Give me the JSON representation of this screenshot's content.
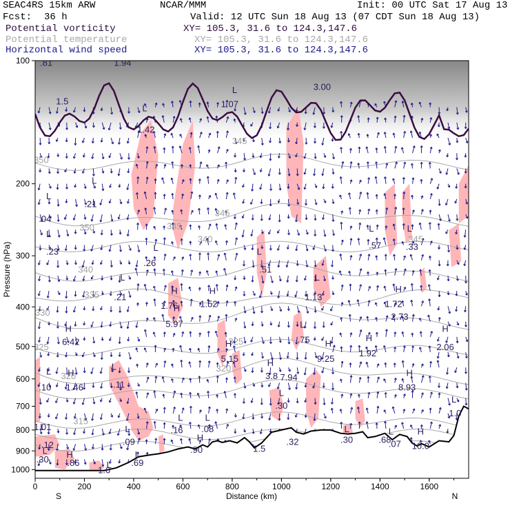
{
  "header": {
    "model": "SEAC4RS 15km ARW",
    "center": "NCAR/MMM",
    "init": "Init: 00 UTC Sat 17 Aug 13",
    "fcst_label": "Fcst:",
    "fcst_value": "36 h",
    "valid": "Valid: 12 UTC Sun 18 Aug 13 (07 CDT Sun 18 Aug 13)",
    "fields": [
      {
        "name": "Potential vorticity",
        "xy": "XY= 105.3, 31.6 to 124.3,147.6",
        "color": "#2a0c3a"
      },
      {
        "name": "Potential temperature",
        "xy": "XY= 105.3, 31.6 to 124.3,147.6",
        "color": "#a8a8a8"
      },
      {
        "name": "Horizontal wind speed",
        "xy": "XY= 105.3, 31.6 to 124.3,147.6",
        "color": "#1a1a8c"
      }
    ]
  },
  "colors": {
    "pv_shade": "#ffb6b9",
    "wind": "#1a1a8c",
    "theta": "#a8a8a8",
    "pv_contour": "#3a0c40",
    "terrain": "#000000"
  },
  "chart_data": {
    "type": "cross-section",
    "xlabel": "Distance (km)",
    "ylabel": "Pressure (hPa)",
    "x_ticks": [
      0,
      200,
      400,
      600,
      800,
      1000,
      1200,
      1400,
      1600
    ],
    "x_tick_labels": [
      "0",
      "200",
      "400",
      "600",
      "800",
      "1000",
      "1200",
      "1400",
      "1600"
    ],
    "y_ticks": [
      100,
      200,
      300,
      400,
      500,
      600,
      700,
      800,
      900,
      1000
    ],
    "y_tick_labels": [
      "100",
      "200",
      "300",
      "400",
      "500",
      "600",
      "700",
      "800",
      "900",
      "1000"
    ],
    "xlim": [
      0,
      1760
    ],
    "ylim": [
      1050,
      100
    ],
    "y_scale": "log",
    "x_end_labels": {
      "left": "S",
      "right": "N"
    },
    "terrain": {
      "x": [
        0,
        280,
        330,
        380,
        420,
        470,
        500,
        540,
        580,
        620,
        650,
        680,
        700,
        720,
        740,
        760,
        790,
        820,
        850,
        870,
        890,
        920,
        960,
        1000,
        1040,
        1060,
        1090,
        1120,
        1160,
        1200,
        1240,
        1270,
        1300,
        1330,
        1350,
        1380,
        1420,
        1450,
        1480,
        1510,
        1530,
        1550,
        1570,
        1600,
        1640,
        1680,
        1700,
        1720,
        1740,
        1760
      ],
      "p": [
        1005,
        1005,
        990,
        960,
        930,
        920,
        915,
        905,
        890,
        880,
        890,
        870,
        880,
        855,
        850,
        858,
        850,
        860,
        835,
        855,
        885,
        860,
        810,
        800,
        790,
        810,
        818,
        805,
        800,
        800,
        815,
        818,
        815,
        808,
        835,
        830,
        815,
        845,
        820,
        830,
        860,
        875,
        865,
        880,
        850,
        855,
        825,
        740,
        700,
        710
      ]
    },
    "theta_labels": [
      {
        "text": "345",
        "x": 830,
        "p": 160
      },
      {
        "text": "350",
        "x": 25,
        "p": 178
      },
      {
        "text": "345",
        "x": 760,
        "p": 240
      },
      {
        "text": "350",
        "x": 210,
        "p": 260
      },
      {
        "text": "345",
        "x": 565,
        "p": 258
      },
      {
        "text": "340",
        "x": 690,
        "p": 278
      },
      {
        "text": "345",
        "x": 1545,
        "p": 278
      },
      {
        "text": "340",
        "x": 205,
        "p": 330
      },
      {
        "text": "335",
        "x": 230,
        "p": 380
      },
      {
        "text": "330",
        "x": 30,
        "p": 420
      },
      {
        "text": "325",
        "x": 25,
        "p": 510
      },
      {
        "text": "325",
        "x": 815,
        "p": 495
      },
      {
        "text": "320",
        "x": 765,
        "p": 575
      },
      {
        "text": "320",
        "x": 135,
        "p": 600
      },
      {
        "text": "315",
        "x": 185,
        "p": 775
      }
    ],
    "pv_labels": [
      {
        "text": ".81",
        "x": 45,
        "p": 103
      },
      {
        "text": "1.94",
        "x": 355,
        "p": 103
      },
      {
        "text": "1.5",
        "x": 110,
        "p": 128
      },
      {
        "text": "1.42",
        "x": 450,
        "p": 150
      },
      {
        "text": "1.07",
        "x": 790,
        "p": 130
      },
      {
        "text": "3.00",
        "x": 1165,
        "p": 118
      },
      {
        "text": ".04",
        "x": 40,
        "p": 248
      },
      {
        "text": ".21",
        "x": 225,
        "p": 228
      },
      {
        "text": ".23",
        "x": 70,
        "p": 298
      },
      {
        "text": ".26",
        "x": 465,
        "p": 318
      },
      {
        "text": ".51",
        "x": 935,
        "p": 330
      },
      {
        "text": ".57",
        "x": 1380,
        "p": 288
      },
      {
        "text": ".33",
        "x": 1530,
        "p": 290
      },
      {
        "text": ".21",
        "x": 345,
        "p": 385
      },
      {
        "text": "1.76",
        "x": 545,
        "p": 404
      },
      {
        "text": "1.52",
        "x": 705,
        "p": 400
      },
      {
        "text": "1.13",
        "x": 1130,
        "p": 385
      },
      {
        "text": "1.72",
        "x": 1455,
        "p": 400
      },
      {
        "text": "2.73",
        "x": 1480,
        "p": 430
      },
      {
        "text": "5.97",
        "x": 565,
        "p": 448
      },
      {
        "text": "6.42",
        "x": 145,
        "p": 496
      },
      {
        "text": ".75",
        "x": 1090,
        "p": 490
      },
      {
        "text": "5.15",
        "x": 790,
        "p": 545
      },
      {
        "text": "9.25",
        "x": 1180,
        "p": 545
      },
      {
        "text": "1.92",
        "x": 1350,
        "p": 528
      },
      {
        "text": "2.06",
        "x": 1665,
        "p": 510
      },
      {
        "text": "3.8",
        "x": 960,
        "p": 600
      },
      {
        "text": "7.94",
        "x": 1030,
        "p": 605
      },
      {
        "text": ".10",
        "x": 40,
        "p": 640
      },
      {
        "text": "1.46",
        "x": 160,
        "p": 640
      },
      {
        "text": ".11",
        "x": 340,
        "p": 630
      },
      {
        "text": "8.93",
        "x": 1510,
        "p": 640
      },
      {
        "text": ".30",
        "x": 1000,
        "p": 710
      },
      {
        "text": "1.01",
        "x": 30,
        "p": 800
      },
      {
        "text": ".16",
        "x": 575,
        "p": 815
      },
      {
        "text": ".08",
        "x": 700,
        "p": 810
      },
      {
        "text": "1.0",
        "x": 1705,
        "p": 740
      },
      {
        "text": ".12",
        "x": 50,
        "p": 885
      },
      {
        "text": ".09",
        "x": 380,
        "p": 870
      },
      {
        "text": ".90",
        "x": 655,
        "p": 910
      },
      {
        "text": ".32",
        "x": 1045,
        "p": 870
      },
      {
        "text": ".30",
        "x": 1265,
        "p": 860
      },
      {
        "text": ".68",
        "x": 1420,
        "p": 860
      },
      {
        "text": ".07",
        "x": 1460,
        "p": 880
      },
      {
        "text": "1.5",
        "x": 910,
        "p": 905
      },
      {
        "text": "10.0",
        "x": 1565,
        "p": 890
      },
      {
        "text": ".30",
        "x": 30,
        "p": 960
      },
      {
        "text": ".86",
        "x": 155,
        "p": 980
      },
      {
        "text": ".69",
        "x": 415,
        "p": 980
      },
      {
        "text": "1.6",
        "x": 280,
        "p": 1020
      }
    ],
    "extrema": [
      {
        "type": "L",
        "x": 55,
        "p": 218
      },
      {
        "type": "L",
        "x": 240,
        "p": 200
      },
      {
        "type": "L",
        "x": 445,
        "p": 133
      },
      {
        "type": "L",
        "x": 810,
        "p": 120
      },
      {
        "type": "L",
        "x": 55,
        "p": 270
      },
      {
        "type": "L",
        "x": 490,
        "p": 292
      },
      {
        "type": "L",
        "x": 910,
        "p": 298
      },
      {
        "type": "L",
        "x": 1365,
        "p": 262
      },
      {
        "type": "L",
        "x": 1520,
        "p": 262
      },
      {
        "type": "L",
        "x": 355,
        "p": 345
      },
      {
        "type": "H",
        "x": 565,
        "p": 372
      },
      {
        "type": "H",
        "x": 720,
        "p": 372
      },
      {
        "type": "L",
        "x": 1145,
        "p": 345
      },
      {
        "type": "H",
        "x": 1475,
        "p": 368
      },
      {
        "type": "H",
        "x": 575,
        "p": 410
      },
      {
        "type": "H",
        "x": 135,
        "p": 460
      },
      {
        "type": "L",
        "x": 1085,
        "p": 450
      },
      {
        "type": "H",
        "x": 785,
        "p": 500
      },
      {
        "type": "H",
        "x": 1190,
        "p": 500
      },
      {
        "type": "H",
        "x": 1355,
        "p": 485
      },
      {
        "type": "H",
        "x": 1665,
        "p": 460
      },
      {
        "type": "H",
        "x": 955,
        "p": 558
      },
      {
        "type": "L",
        "x": 55,
        "p": 585
      },
      {
        "type": "H",
        "x": 145,
        "p": 590
      },
      {
        "type": "L",
        "x": 320,
        "p": 570
      },
      {
        "type": "H",
        "x": 1520,
        "p": 590
      },
      {
        "type": "L",
        "x": 1000,
        "p": 660
      },
      {
        "type": "L",
        "x": 1700,
        "p": 685
      },
      {
        "type": "L",
        "x": 590,
        "p": 760
      },
      {
        "type": "L",
        "x": 700,
        "p": 760
      },
      {
        "type": "L",
        "x": 30,
        "p": 800
      },
      {
        "type": "L",
        "x": 375,
        "p": 810
      },
      {
        "type": "H",
        "x": 670,
        "p": 850
      },
      {
        "type": "L",
        "x": 1265,
        "p": 810
      },
      {
        "type": "L",
        "x": 1445,
        "p": 820
      },
      {
        "type": "H",
        "x": 1565,
        "p": 820
      },
      {
        "type": "L",
        "x": 40,
        "p": 915
      },
      {
        "type": "H",
        "x": 140,
        "p": 935
      },
      {
        "type": "L",
        "x": 415,
        "p": 935
      },
      {
        "type": "L",
        "x": 300,
        "p": 990
      }
    ],
    "pv_shaded_regions": [
      {
        "x": [
          560,
          600,
          640,
          650,
          620,
          580,
          560
        ],
        "p": [
          230,
          160,
          140,
          180,
          250,
          290,
          260
        ]
      },
      {
        "x": [
          390,
          430,
          470,
          500,
          480,
          440,
          400
        ],
        "p": [
          190,
          150,
          140,
          170,
          240,
          260,
          230
        ]
      },
      {
        "x": [
          1020,
          1070,
          1090,
          1080,
          1040,
          1020
        ],
        "p": [
          145,
          130,
          160,
          250,
          240,
          200
        ]
      },
      {
        "x": [
          540,
          580,
          600,
          570,
          540
        ],
        "p": [
          350,
          340,
          400,
          440,
          420
        ]
      },
      {
        "x": [
          900,
          930,
          940,
          920,
          900
        ],
        "p": [
          270,
          260,
          330,
          380,
          330
        ]
      },
      {
        "x": [
          1130,
          1180,
          1200,
          1160,
          1130
        ],
        "p": [
          320,
          300,
          380,
          400,
          360
        ]
      },
      {
        "x": [
          1050,
          1080,
          1090,
          1060,
          1040
        ],
        "p": [
          420,
          410,
          470,
          510,
          480
        ]
      },
      {
        "x": [
          740,
          770,
          780,
          760,
          740
        ],
        "p": [
          440,
          430,
          520,
          560,
          520
        ]
      },
      {
        "x": [
          800,
          830,
          840,
          815,
          800
        ],
        "p": [
          520,
          510,
          600,
          620,
          570
        ]
      },
      {
        "x": [
          1420,
          1460,
          1470,
          1440,
          1420
        ],
        "p": [
          210,
          200,
          280,
          300,
          260
        ]
      },
      {
        "x": [
          1490,
          1520,
          1530,
          1505,
          1490
        ],
        "p": [
          210,
          200,
          270,
          280,
          240
        ]
      },
      {
        "x": [
          1560,
          1580,
          1590,
          1570
        ],
        "p": [
          330,
          320,
          360,
          370
        ]
      },
      {
        "x": [
          1720,
          1760,
          1760,
          1720
        ],
        "p": [
          200,
          180,
          240,
          250
        ]
      },
      {
        "x": [
          1680,
          1720,
          1730,
          1690
        ],
        "p": [
          260,
          250,
          310,
          320
        ]
      },
      {
        "x": [
          0,
          20,
          20,
          0
        ],
        "p": [
          540,
          530,
          760,
          770
        ]
      },
      {
        "x": [
          300,
          340,
          380,
          420,
          430,
          380,
          340,
          300
        ],
        "p": [
          560,
          540,
          600,
          700,
          760,
          770,
          690,
          620
        ]
      },
      {
        "x": [
          380,
          420,
          460,
          480,
          460,
          420,
          390
        ],
        "p": [
          720,
          700,
          720,
          790,
          830,
          850,
          800
        ]
      },
      {
        "x": [
          0,
          80,
          100,
          60,
          0
        ],
        "p": [
          830,
          820,
          870,
          920,
          930
        ]
      },
      {
        "x": [
          80,
          140,
          160,
          120,
          80
        ],
        "p": [
          900,
          890,
          940,
          1000,
          990
        ]
      },
      {
        "x": [
          220,
          260,
          280,
          250,
          220
        ],
        "p": [
          960,
          950,
          990,
          1010,
          1000
        ]
      },
      {
        "x": [
          1100,
          1140,
          1160,
          1150,
          1120,
          1100
        ],
        "p": [
          600,
          570,
          590,
          750,
          790,
          720
        ]
      },
      {
        "x": [
          950,
          990,
          1010,
          990,
          960
        ],
        "p": [
          640,
          630,
          700,
          760,
          740
        ]
      },
      {
        "x": [
          1250,
          1280,
          1290,
          1270,
          1250
        ],
        "p": [
          780,
          770,
          810,
          830,
          820
        ]
      },
      {
        "x": [
          1300,
          1330,
          1340,
          1320,
          1300
        ],
        "p": [
          680,
          670,
          760,
          790,
          750
        ]
      },
      {
        "x": [
          500,
          520,
          525,
          505
        ],
        "p": [
          830,
          820,
          900,
          910
        ]
      }
    ],
    "wind_field": "dense vectors, vertical/meridional component plotted across the section",
    "annotations": {
      "title": "",
      "legend": "none"
    }
  }
}
